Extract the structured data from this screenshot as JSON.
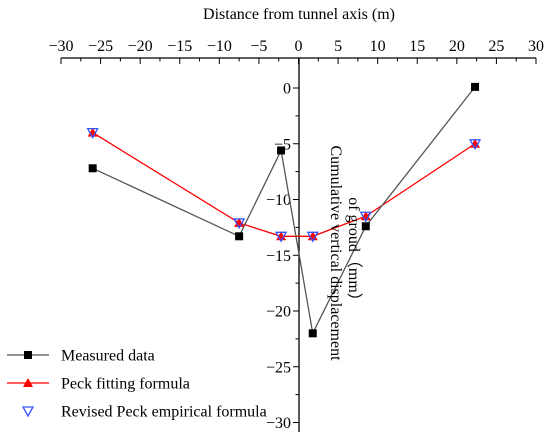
{
  "chart_data": {
    "type": "line",
    "xlabel": "Distance from tunnel axis (m)",
    "ylabel_line1": "Cumulative vertical displacement",
    "ylabel_line2": "of groud（mm）",
    "xlim": [
      -30,
      30
    ],
    "ylim": [
      -30,
      1
    ],
    "x_ticks": [
      -30,
      -25,
      -20,
      -15,
      -10,
      -5,
      0,
      5,
      10,
      15,
      20,
      25,
      30
    ],
    "y_ticks": [
      0,
      -5,
      -10,
      -15,
      -20,
      -25,
      -30
    ],
    "x_tick_labels": [
      "−30",
      "−25",
      "−20",
      "−15",
      "−10",
      "−5",
      "0",
      "5",
      "10",
      "15",
      "20",
      "25",
      "30"
    ],
    "y_tick_labels": [
      "0",
      "−5",
      "−10",
      "−15",
      "−20",
      "−25",
      "−30"
    ],
    "series": [
      {
        "name": "Measured data",
        "color": "#000000",
        "line_color": "#555555",
        "marker": "square",
        "x": [
          -26,
          -7.5,
          -2.2,
          1.8,
          8.5,
          22.3
        ],
        "y": [
          -7.2,
          -13.3,
          -5.6,
          -22.0,
          -12.4,
          0.1
        ]
      },
      {
        "name": "Peck fitting formula",
        "color": "#ff0000",
        "line_color": "#ff0000",
        "marker": "triangle-up",
        "x": [
          -26,
          -7.5,
          -2.2,
          1.8,
          8.5,
          22.3
        ],
        "y": [
          -4.0,
          -12.1,
          -13.3,
          -13.3,
          -11.5,
          -5.0
        ]
      },
      {
        "name": "Revised Peck empirical formula",
        "color": "#3355ff",
        "marker": "triangle-down-open",
        "x": [
          -26,
          -7.5,
          -2.2,
          1.8,
          8.5,
          22.3
        ],
        "y": [
          -4.0,
          -12.1,
          -13.3,
          -13.3,
          -11.5,
          -5.0
        ]
      }
    ],
    "legend_position": "bottom-left"
  }
}
